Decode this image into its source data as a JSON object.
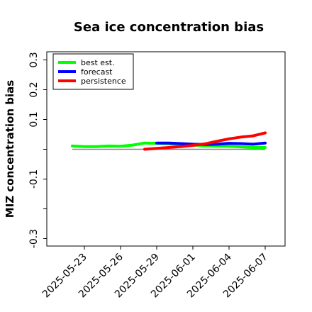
{
  "chart_data": {
    "type": "line",
    "title": "Sea ice concentration bias",
    "xlabel": "",
    "ylabel": "MIZ concentration bias",
    "ylim": [
      -0.32,
      0.33
    ],
    "yticks": [
      -0.3,
      -0.2,
      -0.1,
      0.0,
      0.1,
      0.2,
      0.3
    ],
    "ytick_labels": [
      "-0.3",
      "",
      "-0.1",
      "",
      "0.1",
      "0.2",
      "0.3"
    ],
    "xticks": [
      "2025-05-23",
      "2025-05-26",
      "2025-05-29",
      "2025-06-01",
      "2025-06-04",
      "2025-06-07"
    ],
    "highlight_xtick": "2025-05-29",
    "highlight_color": "#008000",
    "reference_line": 0.0,
    "legend_position": "top-left",
    "series": [
      {
        "name": "best est.",
        "color": "#00ff00",
        "x": [
          "2025-05-22",
          "2025-05-23",
          "2025-05-24",
          "2025-05-25",
          "2025-05-26",
          "2025-05-27",
          "2025-05-28",
          "2025-05-29",
          "2025-05-30",
          "2025-05-31",
          "2025-06-01",
          "2025-06-02",
          "2025-06-03",
          "2025-06-04",
          "2025-06-05",
          "2025-06-06",
          "2025-06-07"
        ],
        "values": [
          0.011,
          0.009,
          0.009,
          0.011,
          0.01,
          0.014,
          0.021,
          0.02,
          0.018,
          0.016,
          0.014,
          0.012,
          0.011,
          0.01,
          0.008,
          0.006,
          0.006
        ]
      },
      {
        "name": "forecast",
        "color": "#0000ff",
        "x": [
          "2025-05-29",
          "2025-05-30",
          "2025-05-31",
          "2025-06-01",
          "2025-06-02",
          "2025-06-03",
          "2025-06-04",
          "2025-06-05",
          "2025-06-06",
          "2025-06-07"
        ],
        "values": [
          0.021,
          0.021,
          0.019,
          0.017,
          0.016,
          0.017,
          0.02,
          0.019,
          0.017,
          0.021
        ]
      },
      {
        "name": "persistence",
        "color": "#ff0000",
        "x": [
          "2025-05-28",
          "2025-05-29",
          "2025-05-30",
          "2025-05-31",
          "2025-06-01",
          "2025-06-02",
          "2025-06-03",
          "2025-06-04",
          "2025-06-05",
          "2025-06-06",
          "2025-06-07"
        ],
        "values": [
          0.0,
          0.003,
          0.006,
          0.009,
          0.013,
          0.018,
          0.027,
          0.035,
          0.041,
          0.045,
          0.055
        ]
      }
    ]
  }
}
